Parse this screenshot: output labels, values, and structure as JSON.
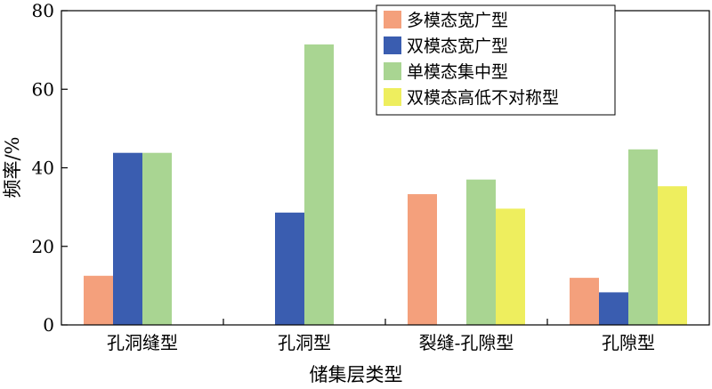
{
  "chart_data": {
    "type": "bar",
    "categories": [
      "孔洞缝型",
      "孔洞型",
      "裂缝-孔隙型",
      "孔隙型"
    ],
    "series": [
      {
        "name": "多模态宽广型",
        "color": "#f4a07c",
        "values": [
          12.5,
          0,
          33.3,
          12
        ]
      },
      {
        "name": "双模态宽广型",
        "color": "#3a5db0",
        "values": [
          43.8,
          28.6,
          0,
          8.3
        ]
      },
      {
        "name": "单模态集中型",
        "color": "#a9d592",
        "values": [
          43.8,
          71.4,
          37,
          44.7
        ]
      },
      {
        "name": "双模态高低不对称型",
        "color": "#eeee5e",
        "values": [
          0,
          0,
          29.6,
          35.3
        ]
      }
    ],
    "xlabel": "储集层类型",
    "ylabel": "频率/%",
    "ylim": [
      0,
      80
    ],
    "yticks": [
      0,
      20,
      40,
      60,
      80
    ],
    "grid": false,
    "legend_position": "top-right"
  }
}
